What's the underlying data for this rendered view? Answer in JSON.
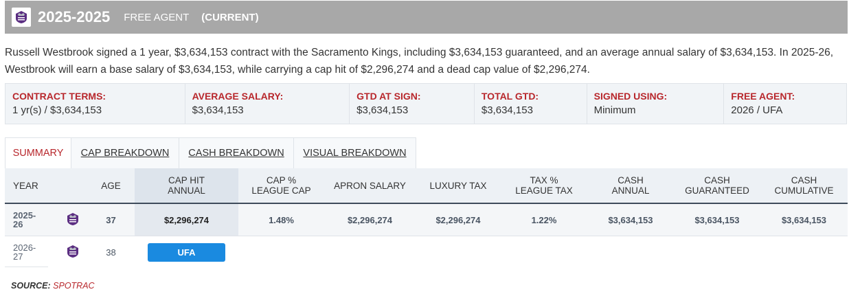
{
  "header": {
    "years": "2025-2025",
    "status": "FREE AGENT",
    "current": "(CURRENT)"
  },
  "description": {
    "line1": "Russell Westbrook signed a 1 year, $3,634,153 contract with the Sacramento Kings, including $3,634,153 guaranteed, and an average annual salary of $3,634,153. In 2025-26,",
    "line2": "Westbrook will earn a base salary of $3,634,153, while carrying a cap hit of $2,296,274 and a dead cap value of $2,296,274."
  },
  "terms": [
    {
      "label": "CONTRACT TERMS:",
      "value": "1 yr(s) / $3,634,153"
    },
    {
      "label": "AVERAGE SALARY:",
      "value": "$3,634,153"
    },
    {
      "label": "GTD AT SIGN:",
      "value": "$3,634,153"
    },
    {
      "label": "TOTAL GTD:",
      "value": "$3,634,153"
    },
    {
      "label": "SIGNED USING:",
      "value": "Minimum"
    },
    {
      "label": "FREE AGENT:",
      "value": "2026 / UFA"
    }
  ],
  "tabs": [
    "SUMMARY",
    "CAP BREAKDOWN",
    "CASH BREAKDOWN",
    "VISUAL BREAKDOWN"
  ],
  "table": {
    "headers": [
      {
        "l1": "YEAR",
        "l2": ""
      },
      {
        "l1": "AGE",
        "l2": ""
      },
      {
        "l1": "CAP HIT",
        "l2": "ANNUAL"
      },
      {
        "l1": "CAP %",
        "l2": "LEAGUE CAP"
      },
      {
        "l1": "APRON SALARY",
        "l2": ""
      },
      {
        "l1": "LUXURY TAX",
        "l2": ""
      },
      {
        "l1": "TAX %",
        "l2": "LEAGUE TAX"
      },
      {
        "l1": "CASH",
        "l2": "ANNUAL"
      },
      {
        "l1": "CASH",
        "l2": "GUARANTEED"
      },
      {
        "l1": "CASH",
        "l2": "CUMULATIVE"
      }
    ],
    "rows": [
      {
        "year_l1": "2025-",
        "year_l2": "26",
        "age": "37",
        "cap_hit": "$2,296,274",
        "cap_pct": "1.48%",
        "apron": "$2,296,274",
        "lux_tax": "$2,296,274",
        "tax_pct": "1.22%",
        "cash_annual": "$3,634,153",
        "cash_gtd": "$3,634,153",
        "cash_cum": "$3,634,153"
      },
      {
        "year_l1": "2026-",
        "year_l2": "27",
        "age": "38",
        "badge": "UFA"
      }
    ]
  },
  "source": {
    "label": "SOURCE:",
    "value": "SPOTRAC"
  },
  "colors": {
    "accent": "#b8272c",
    "badge": "#1a8ae0",
    "header_bg": "#a8a8a8",
    "kings_purple": "#5a2d81"
  },
  "icons": [
    "kings-logo-icon"
  ]
}
